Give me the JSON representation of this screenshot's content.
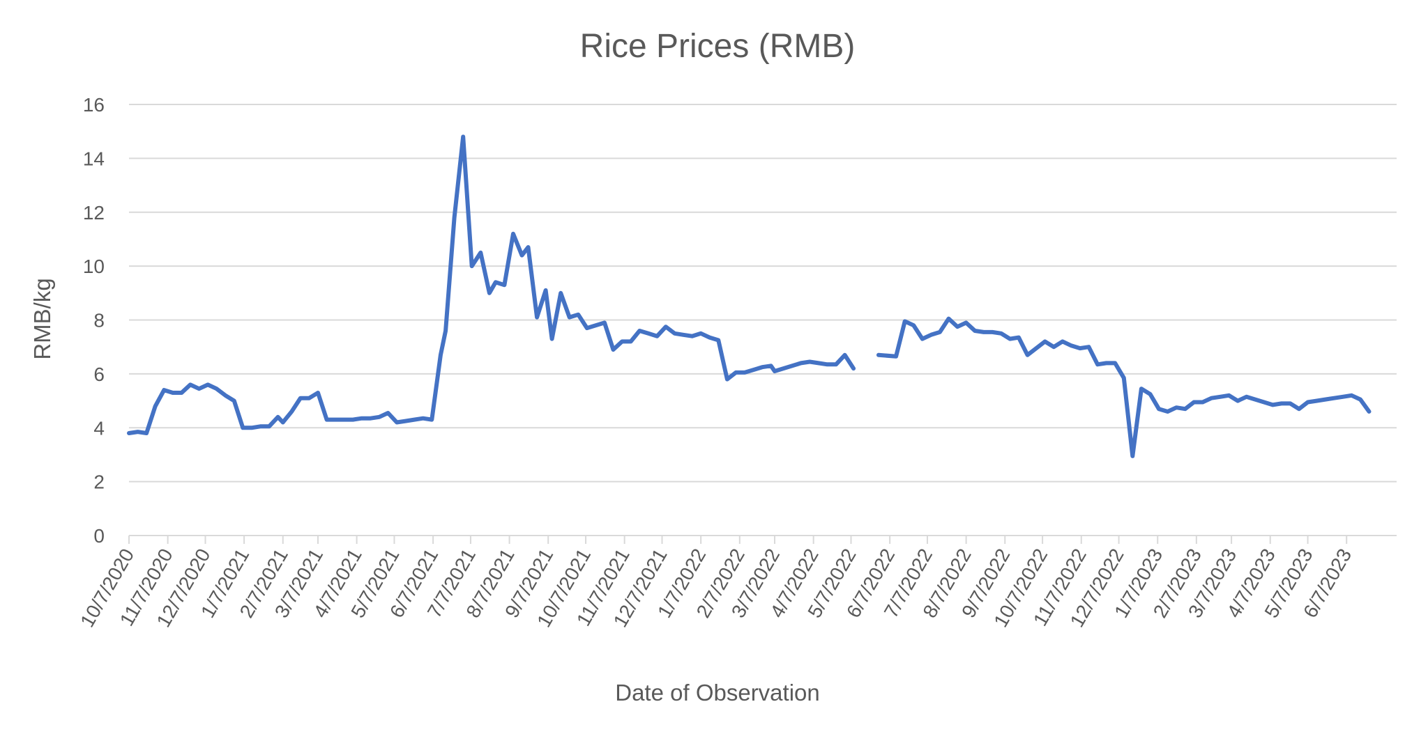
{
  "chart_data": {
    "type": "line",
    "title": "Rice Prices (RMB)",
    "xlabel": "Date of Observation",
    "ylabel": "RMB/kg",
    "ylim": [
      0,
      16
    ],
    "yticks": [
      "0",
      "2",
      "4",
      "6",
      "8",
      "10",
      "12",
      "14",
      "16"
    ],
    "xlim": [
      "2020-10-07",
      "2023-07-17"
    ],
    "xticks": [
      "10/7/2020",
      "11/7/2020",
      "12/7/2020",
      "1/7/2021",
      "2/7/2021",
      "3/7/2021",
      "4/7/2021",
      "5/7/2021",
      "6/7/2021",
      "7/7/2021",
      "8/7/2021",
      "9/7/2021",
      "10/7/2021",
      "11/7/2021",
      "12/7/2021",
      "1/7/2022",
      "2/7/2022",
      "3/7/2022",
      "4/7/2022",
      "5/7/2022",
      "6/7/2022",
      "7/7/2022",
      "8/7/2022",
      "9/7/2022",
      "10/7/2022",
      "11/7/2022",
      "12/7/2022",
      "1/7/2023",
      "2/7/2023",
      "3/7/2023",
      "4/7/2023",
      "5/7/2023",
      "6/7/2023"
    ],
    "grid": true,
    "line_color": "#4472C4",
    "grid_color": "#D9D9D9",
    "series": [
      {
        "segments": [
          [
            [
              "2020-10-07",
              3.8
            ],
            [
              "2020-10-14",
              3.85
            ],
            [
              "2020-10-21",
              3.8
            ],
            [
              "2020-10-28",
              4.8
            ],
            [
              "2020-11-04",
              5.4
            ],
            [
              "2020-11-11",
              5.3
            ],
            [
              "2020-11-18",
              5.3
            ],
            [
              "2020-11-25",
              5.6
            ],
            [
              "2020-12-02",
              5.45
            ],
            [
              "2020-12-09",
              5.6
            ],
            [
              "2020-12-16",
              5.45
            ],
            [
              "2020-12-23",
              5.2
            ],
            [
              "2020-12-30",
              5.0
            ],
            [
              "2021-01-06",
              4.0
            ],
            [
              "2021-01-13",
              4.0
            ],
            [
              "2021-01-20",
              4.05
            ],
            [
              "2021-01-27",
              4.05
            ],
            [
              "2021-02-03",
              4.4
            ],
            [
              "2021-02-07",
              4.2
            ],
            [
              "2021-02-14",
              4.6
            ],
            [
              "2021-02-21",
              5.1
            ],
            [
              "2021-02-28",
              5.1
            ],
            [
              "2021-03-07",
              5.3
            ],
            [
              "2021-03-14",
              4.3
            ],
            [
              "2021-03-21",
              4.3
            ],
            [
              "2021-03-28",
              4.3
            ],
            [
              "2021-04-04",
              4.3
            ],
            [
              "2021-04-11",
              4.35
            ],
            [
              "2021-04-18",
              4.35
            ],
            [
              "2021-04-25",
              4.4
            ],
            [
              "2021-05-02",
              4.55
            ],
            [
              "2021-05-09",
              4.2
            ],
            [
              "2021-05-16",
              4.25
            ],
            [
              "2021-05-23",
              4.3
            ],
            [
              "2021-05-30",
              4.35
            ],
            [
              "2021-06-06",
              4.3
            ],
            [
              "2021-06-13",
              6.7
            ],
            [
              "2021-06-17",
              7.6
            ],
            [
              "2021-06-24",
              11.8
            ],
            [
              "2021-07-01",
              14.8
            ],
            [
              "2021-07-08",
              10.0
            ],
            [
              "2021-07-15",
              10.5
            ],
            [
              "2021-07-22",
              9.0
            ],
            [
              "2021-07-27",
              9.4
            ],
            [
              "2021-08-03",
              9.3
            ],
            [
              "2021-08-10",
              11.2
            ],
            [
              "2021-08-17",
              10.4
            ],
            [
              "2021-08-22",
              10.7
            ],
            [
              "2021-08-29",
              8.1
            ],
            [
              "2021-09-05",
              9.1
            ],
            [
              "2021-09-10",
              7.3
            ],
            [
              "2021-09-17",
              9.0
            ],
            [
              "2021-09-24",
              8.1
            ],
            [
              "2021-10-01",
              8.2
            ],
            [
              "2021-10-08",
              7.7
            ],
            [
              "2021-10-15",
              7.8
            ],
            [
              "2021-10-22",
              7.9
            ],
            [
              "2021-10-29",
              6.9
            ],
            [
              "2021-11-05",
              7.2
            ],
            [
              "2021-11-12",
              7.2
            ],
            [
              "2021-11-19",
              7.6
            ],
            [
              "2021-11-26",
              7.5
            ],
            [
              "2021-12-03",
              7.4
            ],
            [
              "2021-12-10",
              7.75
            ],
            [
              "2021-12-17",
              7.5
            ],
            [
              "2021-12-24",
              7.45
            ],
            [
              "2021-12-31",
              7.4
            ],
            [
              "2022-01-07",
              7.5
            ],
            [
              "2022-01-14",
              7.35
            ],
            [
              "2022-01-21",
              7.25
            ],
            [
              "2022-01-28",
              5.8
            ],
            [
              "2022-02-04",
              6.05
            ],
            [
              "2022-02-11",
              6.05
            ],
            [
              "2022-02-18",
              6.15
            ],
            [
              "2022-02-25",
              6.25
            ],
            [
              "2022-03-04",
              6.3
            ],
            [
              "2022-03-07",
              6.1
            ],
            [
              "2022-03-14",
              6.2
            ],
            [
              "2022-03-21",
              6.3
            ],
            [
              "2022-03-28",
              6.4
            ],
            [
              "2022-04-04",
              6.45
            ],
            [
              "2022-04-11",
              6.4
            ],
            [
              "2022-04-18",
              6.35
            ],
            [
              "2022-04-25",
              6.35
            ],
            [
              "2022-05-02",
              6.7
            ],
            [
              "2022-05-09",
              6.2
            ]
          ],
          [
            [
              "2022-05-29",
              6.7
            ],
            [
              "2022-06-12",
              6.65
            ],
            [
              "2022-06-19",
              7.95
            ],
            [
              "2022-06-26",
              7.8
            ],
            [
              "2022-07-03",
              7.3
            ],
            [
              "2022-07-10",
              7.45
            ],
            [
              "2022-07-17",
              7.55
            ],
            [
              "2022-07-24",
              8.05
            ],
            [
              "2022-07-31",
              7.75
            ],
            [
              "2022-08-07",
              7.9
            ],
            [
              "2022-08-14",
              7.6
            ],
            [
              "2022-08-21",
              7.55
            ],
            [
              "2022-08-28",
              7.55
            ],
            [
              "2022-09-04",
              7.5
            ],
            [
              "2022-09-11",
              7.3
            ],
            [
              "2022-09-18",
              7.35
            ],
            [
              "2022-09-25",
              6.7
            ],
            [
              "2022-10-02",
              6.95
            ],
            [
              "2022-10-09",
              7.2
            ],
            [
              "2022-10-16",
              7.0
            ],
            [
              "2022-10-23",
              7.2
            ],
            [
              "2022-10-30",
              7.05
            ],
            [
              "2022-11-06",
              6.95
            ],
            [
              "2022-11-13",
              7.0
            ],
            [
              "2022-11-20",
              6.35
            ],
            [
              "2022-11-27",
              6.4
            ],
            [
              "2022-12-04",
              6.4
            ],
            [
              "2022-12-11",
              5.85
            ],
            [
              "2022-12-18",
              2.95
            ],
            [
              "2022-12-25",
              5.45
            ],
            [
              "2023-01-01",
              5.25
            ],
            [
              "2023-01-08",
              4.7
            ],
            [
              "2023-01-15",
              4.6
            ],
            [
              "2023-01-22",
              4.75
            ],
            [
              "2023-01-29",
              4.7
            ],
            [
              "2023-02-05",
              4.95
            ],
            [
              "2023-02-12",
              4.95
            ],
            [
              "2023-02-19",
              5.1
            ],
            [
              "2023-02-26",
              5.15
            ],
            [
              "2023-03-05",
              5.2
            ],
            [
              "2023-03-12",
              5.0
            ],
            [
              "2023-03-19",
              5.15
            ],
            [
              "2023-03-26",
              5.05
            ],
            [
              "2023-04-02",
              4.95
            ],
            [
              "2023-04-09",
              4.85
            ],
            [
              "2023-04-16",
              4.9
            ],
            [
              "2023-04-23",
              4.9
            ],
            [
              "2023-04-30",
              4.7
            ],
            [
              "2023-05-07",
              4.95
            ],
            [
              "2023-05-14",
              5.0
            ],
            [
              "2023-05-21",
              5.05
            ],
            [
              "2023-05-28",
              5.1
            ],
            [
              "2023-06-04",
              5.15
            ],
            [
              "2023-06-11",
              5.2
            ],
            [
              "2023-06-18",
              5.05
            ],
            [
              "2023-06-25",
              4.6
            ]
          ]
        ]
      }
    ]
  }
}
